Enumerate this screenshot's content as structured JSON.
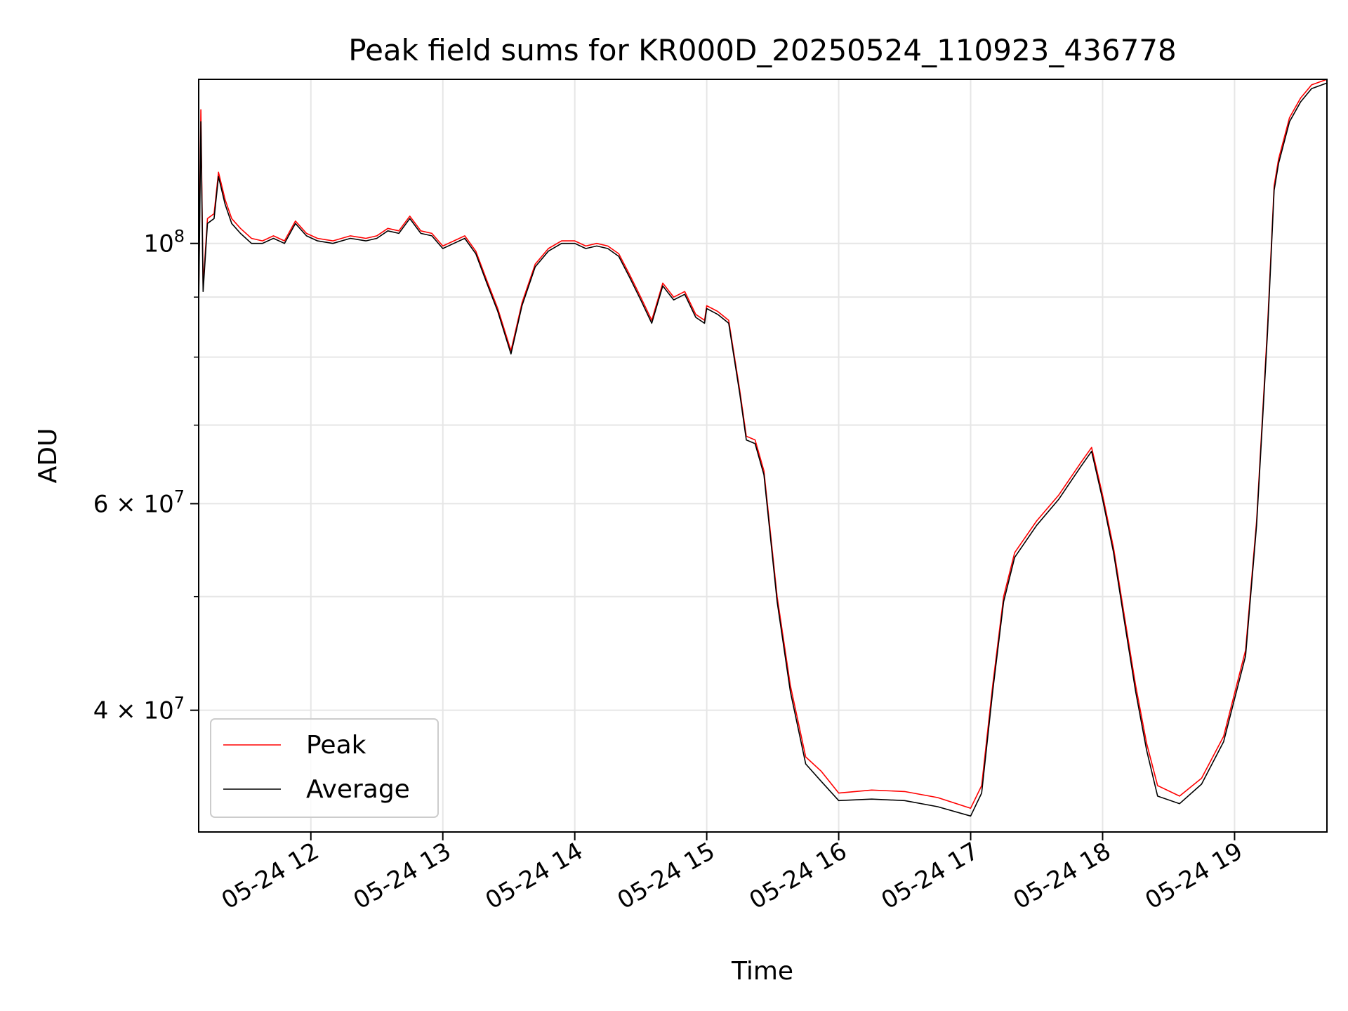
{
  "chart_data": {
    "type": "line",
    "title": "Peak field sums for KR000D_20250524_110923_436778",
    "xlabel": "Time",
    "ylabel": "ADU",
    "y_scale": "log",
    "ylim": [
      31500000,
      138000000
    ],
    "xlim": [
      "2025-05-24 11:09",
      "2025-05-24 19:42"
    ],
    "grid": true,
    "legend_position": "lower-left",
    "x_ticks": [
      {
        "value": "2025-05-24 12:00",
        "label": "05-24 12"
      },
      {
        "value": "2025-05-24 13:00",
        "label": "05-24 13"
      },
      {
        "value": "2025-05-24 14:00",
        "label": "05-24 14"
      },
      {
        "value": "2025-05-24 15:00",
        "label": "05-24 15"
      },
      {
        "value": "2025-05-24 16:00",
        "label": "05-24 16"
      },
      {
        "value": "2025-05-24 17:00",
        "label": "05-24 17"
      },
      {
        "value": "2025-05-24 18:00",
        "label": "05-24 18"
      },
      {
        "value": "2025-05-24 19:00",
        "label": "05-24 19"
      }
    ],
    "y_ticks": [
      {
        "value": 100000000,
        "base": "10",
        "exp": "8"
      },
      {
        "value": 60000000,
        "mantissa": "6 × ",
        "base": "10",
        "exp": "7"
      },
      {
        "value": 40000000,
        "mantissa": "4 × ",
        "base": "10",
        "exp": "7"
      }
    ],
    "y_minor_ticks": [
      50000000,
      70000000,
      80000000,
      90000000
    ],
    "series": [
      {
        "name": "Peak",
        "color": "#ff0000",
        "points": [
          [
            "2025-05-24 11:09",
            90000000
          ],
          [
            "2025-05-24 11:10",
            130000000
          ],
          [
            "2025-05-24 11:11",
            92000000
          ],
          [
            "2025-05-24 11:13",
            105000000
          ],
          [
            "2025-05-24 11:16",
            106000000
          ],
          [
            "2025-05-24 11:18",
            115000000
          ],
          [
            "2025-05-24 11:21",
            109000000
          ],
          [
            "2025-05-24 11:24",
            105000000
          ],
          [
            "2025-05-24 11:28",
            103000000
          ],
          [
            "2025-05-24 11:33",
            101000000
          ],
          [
            "2025-05-24 11:38",
            100500000
          ],
          [
            "2025-05-24 11:43",
            101500000
          ],
          [
            "2025-05-24 11:48",
            100500000
          ],
          [
            "2025-05-24 11:53",
            104500000
          ],
          [
            "2025-05-24 11:58",
            102000000
          ],
          [
            "2025-05-24 12:03",
            101000000
          ],
          [
            "2025-05-24 12:10",
            100500000
          ],
          [
            "2025-05-24 12:18",
            101500000
          ],
          [
            "2025-05-24 12:25",
            101000000
          ],
          [
            "2025-05-24 12:30",
            101500000
          ],
          [
            "2025-05-24 12:35",
            103000000
          ],
          [
            "2025-05-24 12:40",
            102500000
          ],
          [
            "2025-05-24 12:45",
            105500000
          ],
          [
            "2025-05-24 12:50",
            102500000
          ],
          [
            "2025-05-24 12:55",
            102000000
          ],
          [
            "2025-05-24 13:00",
            99500000
          ],
          [
            "2025-05-24 13:05",
            100500000
          ],
          [
            "2025-05-24 13:10",
            101500000
          ],
          [
            "2025-05-24 13:15",
            98500000
          ],
          [
            "2025-05-24 13:20",
            93000000
          ],
          [
            "2025-05-24 13:25",
            88000000
          ],
          [
            "2025-05-24 13:31",
            81000000
          ],
          [
            "2025-05-24 13:36",
            89000000
          ],
          [
            "2025-05-24 13:42",
            96000000
          ],
          [
            "2025-05-24 13:48",
            99000000
          ],
          [
            "2025-05-24 13:54",
            100500000
          ],
          [
            "2025-05-24 14:00",
            100500000
          ],
          [
            "2025-05-24 14:05",
            99500000
          ],
          [
            "2025-05-24 14:10",
            100000000
          ],
          [
            "2025-05-24 14:15",
            99500000
          ],
          [
            "2025-05-24 14:20",
            98000000
          ],
          [
            "2025-05-24 14:25",
            94000000
          ],
          [
            "2025-05-24 14:30",
            90000000
          ],
          [
            "2025-05-24 14:35",
            86000000
          ],
          [
            "2025-05-24 14:40",
            92500000
          ],
          [
            "2025-05-24 14:45",
            90000000
          ],
          [
            "2025-05-24 14:50",
            91000000
          ],
          [
            "2025-05-24 14:55",
            87000000
          ],
          [
            "2025-05-24 14:59",
            86000000
          ],
          [
            "2025-05-24 15:00",
            88500000
          ],
          [
            "2025-05-24 15:05",
            87500000
          ],
          [
            "2025-05-24 15:10",
            86000000
          ],
          [
            "2025-05-24 15:15",
            75000000
          ],
          [
            "2025-05-24 15:18",
            68500000
          ],
          [
            "2025-05-24 15:22",
            68000000
          ],
          [
            "2025-05-24 15:26",
            64000000
          ],
          [
            "2025-05-24 15:32",
            50000000
          ],
          [
            "2025-05-24 15:38",
            42000000
          ],
          [
            "2025-05-24 15:45",
            36500000
          ],
          [
            "2025-05-24 15:52",
            35500000
          ],
          [
            "2025-05-24 16:00",
            34000000
          ],
          [
            "2025-05-24 16:15",
            34200000
          ],
          [
            "2025-05-24 16:30",
            34100000
          ],
          [
            "2025-05-24 16:45",
            33700000
          ],
          [
            "2025-05-24 17:00",
            33000000
          ],
          [
            "2025-05-24 17:05",
            34500000
          ],
          [
            "2025-05-24 17:10",
            42000000
          ],
          [
            "2025-05-24 17:15",
            50000000
          ],
          [
            "2025-05-24 17:20",
            54500000
          ],
          [
            "2025-05-24 17:30",
            58000000
          ],
          [
            "2025-05-24 17:40",
            61000000
          ],
          [
            "2025-05-24 17:50",
            65000000
          ],
          [
            "2025-05-24 17:55",
            67000000
          ],
          [
            "2025-05-24 18:00",
            61000000
          ],
          [
            "2025-05-24 18:05",
            55000000
          ],
          [
            "2025-05-24 18:10",
            48000000
          ],
          [
            "2025-05-24 18:15",
            42000000
          ],
          [
            "2025-05-24 18:20",
            37500000
          ],
          [
            "2025-05-24 18:25",
            34500000
          ],
          [
            "2025-05-24 18:35",
            33800000
          ],
          [
            "2025-05-24 18:45",
            35000000
          ],
          [
            "2025-05-24 18:55",
            38000000
          ],
          [
            "2025-05-24 19:05",
            45000000
          ],
          [
            "2025-05-24 19:10",
            58000000
          ],
          [
            "2025-05-24 19:15",
            85000000
          ],
          [
            "2025-05-24 19:18",
            112000000
          ],
          [
            "2025-05-24 19:20",
            118000000
          ],
          [
            "2025-05-24 19:25",
            128000000
          ],
          [
            "2025-05-24 19:30",
            133000000
          ],
          [
            "2025-05-24 19:35",
            136500000
          ],
          [
            "2025-05-24 19:42",
            138000000
          ]
        ]
      },
      {
        "name": "Average",
        "color": "#000000",
        "points": [
          [
            "2025-05-24 11:09",
            88000000
          ],
          [
            "2025-05-24 11:10",
            127000000
          ],
          [
            "2025-05-24 11:11",
            91000000
          ],
          [
            "2025-05-24 11:13",
            104000000
          ],
          [
            "2025-05-24 11:16",
            105000000
          ],
          [
            "2025-05-24 11:18",
            114000000
          ],
          [
            "2025-05-24 11:21",
            108000000
          ],
          [
            "2025-05-24 11:24",
            104000000
          ],
          [
            "2025-05-24 11:28",
            102000000
          ],
          [
            "2025-05-24 11:33",
            100000000
          ],
          [
            "2025-05-24 11:38",
            100000000
          ],
          [
            "2025-05-24 11:43",
            101000000
          ],
          [
            "2025-05-24 11:48",
            100000000
          ],
          [
            "2025-05-24 11:53",
            104000000
          ],
          [
            "2025-05-24 11:58",
            101500000
          ],
          [
            "2025-05-24 12:03",
            100500000
          ],
          [
            "2025-05-24 12:10",
            100000000
          ],
          [
            "2025-05-24 12:18",
            101000000
          ],
          [
            "2025-05-24 12:25",
            100500000
          ],
          [
            "2025-05-24 12:30",
            101000000
          ],
          [
            "2025-05-24 12:35",
            102500000
          ],
          [
            "2025-05-24 12:40",
            102000000
          ],
          [
            "2025-05-24 12:45",
            105000000
          ],
          [
            "2025-05-24 12:50",
            102000000
          ],
          [
            "2025-05-24 12:55",
            101500000
          ],
          [
            "2025-05-24 13:00",
            99000000
          ],
          [
            "2025-05-24 13:05",
            100000000
          ],
          [
            "2025-05-24 13:10",
            101000000
          ],
          [
            "2025-05-24 13:15",
            98000000
          ],
          [
            "2025-05-24 13:20",
            92500000
          ],
          [
            "2025-05-24 13:25",
            87500000
          ],
          [
            "2025-05-24 13:31",
            80500000
          ],
          [
            "2025-05-24 13:36",
            88500000
          ],
          [
            "2025-05-24 13:42",
            95500000
          ],
          [
            "2025-05-24 13:48",
            98500000
          ],
          [
            "2025-05-24 13:54",
            100000000
          ],
          [
            "2025-05-24 14:00",
            100000000
          ],
          [
            "2025-05-24 14:05",
            99000000
          ],
          [
            "2025-05-24 14:10",
            99500000
          ],
          [
            "2025-05-24 14:15",
            99000000
          ],
          [
            "2025-05-24 14:20",
            97500000
          ],
          [
            "2025-05-24 14:25",
            93500000
          ],
          [
            "2025-05-24 14:30",
            89500000
          ],
          [
            "2025-05-24 14:35",
            85500000
          ],
          [
            "2025-05-24 14:40",
            92000000
          ],
          [
            "2025-05-24 14:45",
            89500000
          ],
          [
            "2025-05-24 14:50",
            90500000
          ],
          [
            "2025-05-24 14:55",
            86500000
          ],
          [
            "2025-05-24 14:59",
            85500000
          ],
          [
            "2025-05-24 15:00",
            88000000
          ],
          [
            "2025-05-24 15:05",
            87000000
          ],
          [
            "2025-05-24 15:10",
            85500000
          ],
          [
            "2025-05-24 15:15",
            74500000
          ],
          [
            "2025-05-24 15:18",
            68000000
          ],
          [
            "2025-05-24 15:22",
            67500000
          ],
          [
            "2025-05-24 15:26",
            63500000
          ],
          [
            "2025-05-24 15:32",
            49500000
          ],
          [
            "2025-05-24 15:38",
            41500000
          ],
          [
            "2025-05-24 15:45",
            36000000
          ],
          [
            "2025-05-24 15:52",
            34800000
          ],
          [
            "2025-05-24 16:00",
            33500000
          ],
          [
            "2025-05-24 16:15",
            33600000
          ],
          [
            "2025-05-24 16:30",
            33500000
          ],
          [
            "2025-05-24 16:45",
            33100000
          ],
          [
            "2025-05-24 17:00",
            32500000
          ],
          [
            "2025-05-24 17:05",
            34000000
          ],
          [
            "2025-05-24 17:10",
            41500000
          ],
          [
            "2025-05-24 17:15",
            49500000
          ],
          [
            "2025-05-24 17:20",
            54000000
          ],
          [
            "2025-05-24 17:30",
            57500000
          ],
          [
            "2025-05-24 17:40",
            60500000
          ],
          [
            "2025-05-24 17:50",
            64500000
          ],
          [
            "2025-05-24 17:55",
            66500000
          ],
          [
            "2025-05-24 18:00",
            60500000
          ],
          [
            "2025-05-24 18:05",
            54500000
          ],
          [
            "2025-05-24 18:10",
            47500000
          ],
          [
            "2025-05-24 18:15",
            41500000
          ],
          [
            "2025-05-24 18:20",
            37000000
          ],
          [
            "2025-05-24 18:25",
            33800000
          ],
          [
            "2025-05-24 18:35",
            33300000
          ],
          [
            "2025-05-24 18:45",
            34600000
          ],
          [
            "2025-05-24 18:55",
            37600000
          ],
          [
            "2025-05-24 19:05",
            44500000
          ],
          [
            "2025-05-24 19:10",
            57500000
          ],
          [
            "2025-05-24 19:15",
            84000000
          ],
          [
            "2025-05-24 19:18",
            111000000
          ],
          [
            "2025-05-24 19:20",
            117000000
          ],
          [
            "2025-05-24 19:25",
            127000000
          ],
          [
            "2025-05-24 19:30",
            132000000
          ],
          [
            "2025-05-24 19:35",
            135500000
          ],
          [
            "2025-05-24 19:42",
            137000000
          ]
        ]
      }
    ]
  }
}
